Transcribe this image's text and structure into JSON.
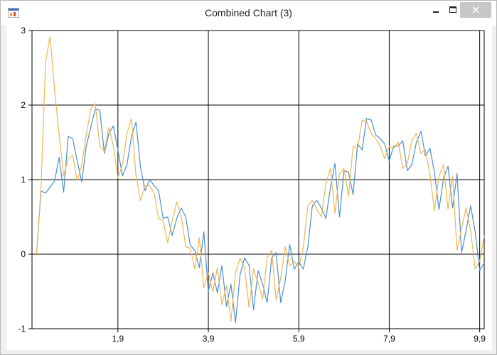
{
  "window": {
    "title": "Combined Chart (3)",
    "minimize_icon": "minimize-icon",
    "maximize_icon": "maximize-icon",
    "close_icon": "close-icon",
    "app_icon": "chart-app-icon"
  },
  "colors": {
    "series_blue": "#4a8fd6",
    "series_orange": "#f0b752",
    "grid": "#000000"
  },
  "chart_data": {
    "type": "line",
    "title": "",
    "xlabel": "",
    "ylabel": "",
    "xlim": [
      0,
      10
    ],
    "ylim": [
      -1,
      3
    ],
    "x_ticks": [
      1.9,
      3.9,
      5.9,
      7.9,
      9.9
    ],
    "x_tick_labels": [
      "1,9",
      "3,9",
      "5,9",
      "7,9",
      "9,9"
    ],
    "y_ticks": [
      -1,
      0,
      1,
      2,
      3
    ],
    "y_tick_labels": [
      "-1",
      "0",
      "1",
      "2",
      "3"
    ],
    "grid": true,
    "series": [
      {
        "color": "#4a8fd6",
        "x": [
          0.1,
          0.2,
          0.3,
          0.4,
          0.5,
          0.6,
          0.7,
          0.8,
          0.9,
          1.0,
          1.1,
          1.2,
          1.3,
          1.4,
          1.5,
          1.6,
          1.7,
          1.8,
          1.9,
          2.0,
          2.1,
          2.2,
          2.3,
          2.4,
          2.5,
          2.6,
          2.7,
          2.8,
          2.9,
          3.0,
          3.1,
          3.2,
          3.3,
          3.4,
          3.5,
          3.6,
          3.7,
          3.8,
          3.9,
          4.0,
          4.1,
          4.2,
          4.3,
          4.4,
          4.5,
          4.6,
          4.7,
          4.8,
          4.9,
          5.0,
          5.1,
          5.2,
          5.3,
          5.4,
          5.5,
          5.6,
          5.7,
          5.8,
          5.9,
          6.0,
          6.1,
          6.2,
          6.3,
          6.4,
          6.5,
          6.6,
          6.7,
          6.8,
          6.9,
          7.0,
          7.1,
          7.2,
          7.3,
          7.4,
          7.5,
          7.6,
          7.7,
          7.8,
          7.9,
          8.0,
          8.1,
          8.2,
          8.3,
          8.4,
          8.5,
          8.6,
          8.7,
          8.8,
          8.9,
          9.0,
          9.1,
          9.2,
          9.3,
          9.4,
          9.5,
          9.6,
          9.7,
          9.8,
          9.9,
          10.0
        ],
        "y": [
          0.0,
          0.85,
          0.82,
          0.9,
          0.98,
          1.3,
          0.83,
          1.58,
          1.55,
          1.25,
          0.97,
          1.45,
          1.7,
          1.95,
          1.93,
          1.35,
          1.62,
          1.72,
          1.4,
          1.05,
          1.2,
          1.58,
          1.77,
          1.17,
          0.85,
          1.0,
          0.92,
          0.85,
          0.48,
          0.5,
          0.25,
          0.48,
          0.62,
          0.5,
          0.12,
          0.05,
          -0.18,
          0.3,
          -0.5,
          -0.25,
          -0.52,
          -0.15,
          -0.7,
          -0.4,
          -0.92,
          -0.28,
          -0.05,
          -0.15,
          -0.75,
          -0.22,
          -0.4,
          -0.65,
          -0.05,
          0.02,
          -0.65,
          -0.35,
          0.13,
          -0.2,
          -0.1,
          -0.2,
          0.1,
          0.65,
          0.72,
          0.62,
          0.48,
          0.9,
          1.22,
          0.5,
          1.12,
          1.1,
          0.8,
          1.48,
          1.4,
          1.82,
          1.8,
          1.6,
          1.55,
          1.48,
          1.25,
          1.45,
          1.45,
          1.52,
          1.12,
          1.2,
          1.5,
          1.65,
          1.32,
          1.42,
          1.1,
          0.6,
          1.02,
          1.18,
          0.62,
          1.08,
          0.02,
          0.32,
          0.65,
          0.3,
          -0.22,
          -0.12
        ]
      },
      {
        "color": "#f0b752",
        "x": [
          0.1,
          0.2,
          0.3,
          0.4,
          0.5,
          0.6,
          0.7,
          0.8,
          0.9,
          1.0,
          1.1,
          1.2,
          1.3,
          1.4,
          1.5,
          1.6,
          1.7,
          1.8,
          1.9,
          2.0,
          2.1,
          2.2,
          2.3,
          2.4,
          2.5,
          2.6,
          2.7,
          2.8,
          2.9,
          3.0,
          3.1,
          3.2,
          3.3,
          3.4,
          3.5,
          3.6,
          3.7,
          3.8,
          3.9,
          4.0,
          4.1,
          4.2,
          4.3,
          4.4,
          4.5,
          4.6,
          4.7,
          4.8,
          4.9,
          5.0,
          5.1,
          5.2,
          5.3,
          5.4,
          5.5,
          5.6,
          5.7,
          5.8,
          5.9,
          6.0,
          6.1,
          6.2,
          6.3,
          6.4,
          6.5,
          6.6,
          6.7,
          6.8,
          6.9,
          7.0,
          7.1,
          7.2,
          7.3,
          7.4,
          7.5,
          7.6,
          7.7,
          7.8,
          7.9,
          8.0,
          8.1,
          8.2,
          8.3,
          8.4,
          8.5,
          8.6,
          8.7,
          8.8,
          8.9,
          9.0,
          9.1,
          9.2,
          9.3,
          9.4,
          9.5,
          9.6,
          9.7,
          9.8,
          9.9,
          10.0
        ],
        "y": [
          0.0,
          0.9,
          2.58,
          2.92,
          2.2,
          1.6,
          1.05,
          1.28,
          1.33,
          0.98,
          1.2,
          1.6,
          1.95,
          2.02,
          1.45,
          1.38,
          1.7,
          1.45,
          1.02,
          1.2,
          1.62,
          1.82,
          1.05,
          0.72,
          0.92,
          0.92,
          0.82,
          0.48,
          0.45,
          0.15,
          0.45,
          0.7,
          0.52,
          0.1,
          0.08,
          -0.2,
          0.22,
          -0.45,
          -0.25,
          -0.5,
          -0.18,
          -0.68,
          -0.42,
          -0.9,
          -0.25,
          -0.05,
          -0.18,
          -0.72,
          -0.2,
          -0.38,
          -0.6,
          -0.05,
          0.05,
          -0.62,
          -0.32,
          0.1,
          -0.15,
          -0.1,
          -0.18,
          0.1,
          0.65,
          0.72,
          0.6,
          0.5,
          0.95,
          1.15,
          0.55,
          1.08,
          1.15,
          0.78,
          1.45,
          1.42,
          1.8,
          1.78,
          1.62,
          1.55,
          1.45,
          1.28,
          1.45,
          1.42,
          1.5,
          1.15,
          1.22,
          1.52,
          1.62,
          1.35,
          1.4,
          1.08,
          0.58,
          1.05,
          1.2,
          0.6,
          1.05,
          0.05,
          0.35,
          0.62,
          0.32,
          -0.2,
          -0.1,
          0.25
        ]
      }
    ]
  }
}
